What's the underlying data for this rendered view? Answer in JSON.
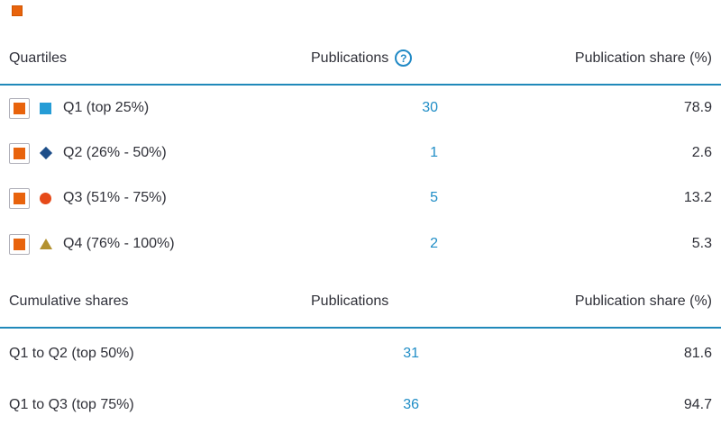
{
  "page": {
    "corner_icon_name": "legend-fragment-icon"
  },
  "colors": {
    "divider_blue": "#2089ba",
    "help_icon_blue": "#2089c5",
    "publications_link_blue": "#1f8dc6",
    "checkbox_orange": "#e8630c",
    "checkbox_border_gray": "#afafb8",
    "q1_marker_blue": "#259cd6",
    "q2_marker_navy": "#1d4e89",
    "q3_marker_red": "#e64a19",
    "q4_marker_gold": "#b3912f",
    "text_dark": "#2f3038"
  },
  "quartiles_table": {
    "title_header": "Quartiles",
    "publications_header": "Publications",
    "help_icon_glyph": "?",
    "share_header": "Publication share (%)",
    "rows": [
      {
        "label": "Q1 (top 25%)",
        "marker": "blue-square",
        "checked": true,
        "publications": "30",
        "share": "78.9"
      },
      {
        "label": "Q2 (26% - 50%)",
        "marker": "navy-diamond",
        "checked": true,
        "publications": "1",
        "share": "2.6"
      },
      {
        "label": "Q3 (51% - 75%)",
        "marker": "red-circle",
        "checked": true,
        "publications": "5",
        "share": "13.2"
      },
      {
        "label": "Q4 (76% - 100%)",
        "marker": "gold-triangle",
        "checked": true,
        "publications": "2",
        "share": "5.3"
      }
    ]
  },
  "cumulative_table": {
    "title_header": "Cumulative shares",
    "publications_header": "Publications",
    "share_header": "Publication share (%)",
    "rows": [
      {
        "label": "Q1 to Q2 (top 50%)",
        "publications": "31",
        "share": "81.6"
      },
      {
        "label": "Q1 to Q3 (top 75%)",
        "publications": "36",
        "share": "94.7"
      }
    ]
  }
}
